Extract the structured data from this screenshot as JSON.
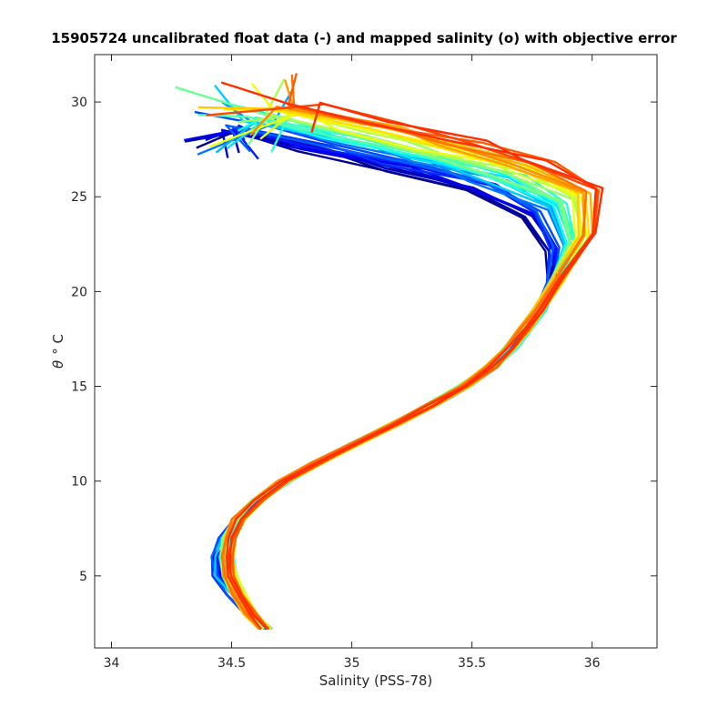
{
  "chart_data": {
    "type": "line",
    "title": "15905724 uncalibrated float data (-) and mapped salinity (o) with objective error",
    "xlabel": "Salinity (PSS-78)",
    "ylabel_prefix": "θ",
    "ylabel_suffix": "°  C",
    "xlim": [
      33.93,
      36.27
    ],
    "ylim": [
      1.2,
      32.5
    ],
    "xticks": [
      34,
      34.5,
      35,
      35.5,
      36
    ],
    "xtick_labels": [
      "34",
      "34.5",
      "35",
      "35.5",
      "36"
    ],
    "yticks": [
      5,
      10,
      15,
      20,
      25,
      30
    ],
    "ytick_labels": [
      "5",
      "10",
      "15",
      "20",
      "25",
      "30"
    ],
    "grid": false,
    "legend": "none",
    "colormap": "jet (profile index)",
    "series_count": 40,
    "representative_profile": {
      "x": [
        34.64,
        34.58,
        34.52,
        34.47,
        34.46,
        34.48,
        34.53,
        34.61,
        34.72,
        34.86,
        35.02,
        35.18,
        35.33,
        35.47,
        35.58,
        35.66,
        35.72,
        35.78,
        35.82,
        35.78,
        35.66,
        35.42,
        35.1,
        34.78,
        34.45
      ],
      "y": [
        2.2,
        3.0,
        4.0,
        5.0,
        6.0,
        7.0,
        8.0,
        9.0,
        10.0,
        11.0,
        12.0,
        13.0,
        14.0,
        15.0,
        16.0,
        17.0,
        18.0,
        19.0,
        20.5,
        22.5,
        24.5,
        26.0,
        27.0,
        28.0,
        29.0
      ]
    }
  }
}
